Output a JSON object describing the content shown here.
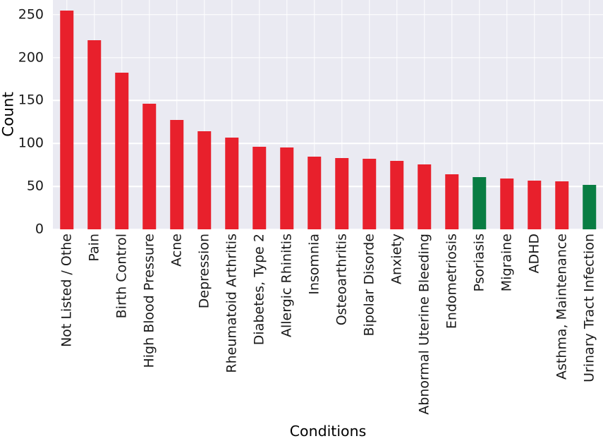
{
  "chart_data": {
    "type": "bar",
    "title": "",
    "xlabel": "Conditions",
    "ylabel": "Count",
    "categories": [
      "Not Listed / Othe",
      "Pain",
      "Birth Control",
      "High Blood Pressure",
      "Acne",
      "Depression",
      "Rheumatoid Arthritis",
      "Diabetes, Type 2",
      "Allergic Rhinitis",
      "Insomnia",
      "Osteoarthritis",
      "Bipolar Disorde",
      "Anxiety",
      "Abnormal Uterine Bleeding",
      "Endometriosis",
      "Psoriasis",
      "Migraine",
      "ADHD",
      "Asthma, Maintenance",
      "Urinary Tract Infection"
    ],
    "values": [
      255,
      220,
      182,
      146,
      127,
      114,
      107,
      96,
      95,
      85,
      83,
      82,
      80,
      76,
      64,
      61,
      59,
      57,
      56,
      52
    ],
    "bar_colors": [
      "#e8202c",
      "#e8202c",
      "#e8202c",
      "#e8202c",
      "#e8202c",
      "#e8202c",
      "#e8202c",
      "#e8202c",
      "#e8202c",
      "#e8202c",
      "#e8202c",
      "#e8202c",
      "#e8202c",
      "#e8202c",
      "#e8202c",
      "#097d43",
      "#e8202c",
      "#e8202c",
      "#e8202c",
      "#097d43"
    ],
    "default_bar_color": "#e8202c",
    "highlight_bar_color": "#097d43",
    "highlighted_categories": [
      "Psoriasis",
      "Urinary Tract Infection"
    ],
    "yticks": [
      0,
      50,
      100,
      150,
      200,
      250
    ],
    "ylim": [
      0,
      267
    ],
    "grid": true,
    "legend": "none",
    "plot_background": "#eaeaf2",
    "grid_color": "#ffffff",
    "tick_color": "#1a1a1a"
  }
}
